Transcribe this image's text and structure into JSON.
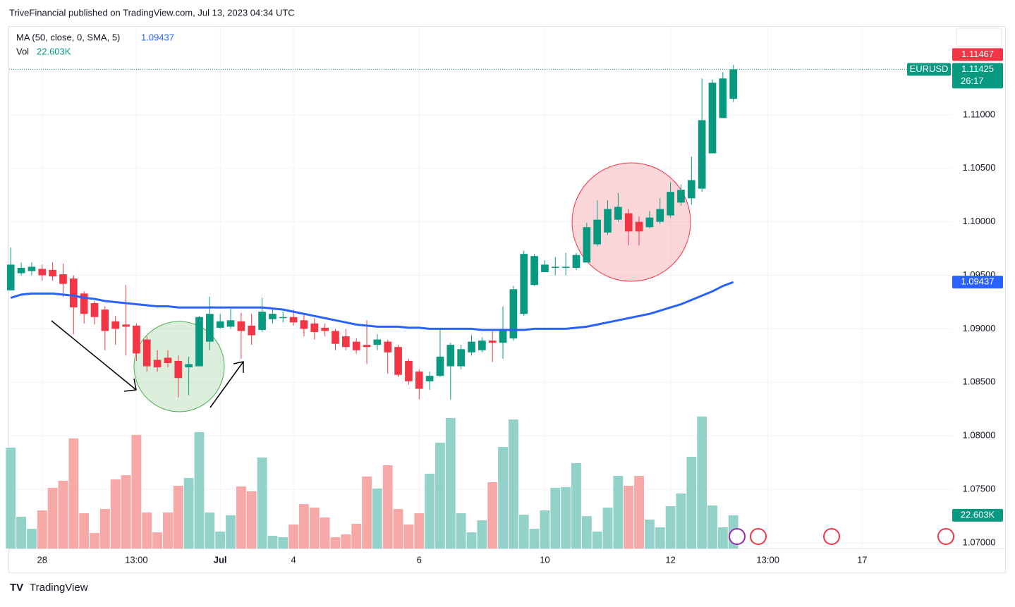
{
  "header": {
    "text": "TriveFinancial published on TradingView.com, Jul 13, 2023 04:34 UTC"
  },
  "chart_data": {
    "type": "candlestick",
    "symbol": "EURUSD",
    "countdown": "26:17",
    "up_color": "#089981",
    "down_color": "#f23645",
    "grid": true,
    "xlim": [
      -0.15,
      89.9
    ],
    "xticks": [
      {
        "value": 3,
        "label": "28"
      },
      {
        "value": 12,
        "label": "13:00"
      },
      {
        "value": 20,
        "label": "Jul"
      },
      {
        "value": 27,
        "label": "4"
      },
      {
        "value": 39,
        "label": "6"
      },
      {
        "value": 51,
        "label": "10"
      },
      {
        "value": 63,
        "label": "12"
      },
      {
        "value": 72.3,
        "label": "13:00"
      },
      {
        "value": 81.3,
        "label": "17"
      }
    ],
    "ylim": [
      1.06947,
      1.11823
    ],
    "yticks": [
      {
        "value": 1.07,
        "label": "1.07000"
      },
      {
        "value": 1.075,
        "label": "1.07500"
      },
      {
        "value": 1.08,
        "label": "1.08000"
      },
      {
        "value": 1.085,
        "label": "1.08500"
      },
      {
        "value": 1.09,
        "label": "1.09000"
      },
      {
        "value": 1.095,
        "label": "1.09500"
      },
      {
        "value": 1.1,
        "label": "1.10000"
      },
      {
        "value": 1.105,
        "label": "1.10500"
      },
      {
        "value": 1.11,
        "label": "1.11000"
      }
    ],
    "open": [
      1.0936,
      1.0952,
      1.0954,
      1.0956,
      1.0955,
      1.0951,
      1.0947,
      1.0933,
      1.0924,
      1.0918,
      1.0907,
      1.0904,
      1.0903,
      1.089,
      1.0871,
      1.0873,
      1.087,
      1.0864,
      1.0865,
      1.0888,
      1.0901,
      1.0902,
      1.0907,
      1.0903,
      1.0899,
      1.0909,
      1.091,
      1.0911,
      1.0908,
      1.0905,
      1.0901,
      1.0898,
      1.0893,
      1.0888,
      1.0885,
      1.0885,
      1.0888,
      1.0883,
      1.087,
      1.086,
      1.0851,
      1.0856,
      1.0865,
      1.0865,
      1.0878,
      1.088,
      1.0889,
      1.0887,
      1.0891,
      1.0914,
      1.0941,
      1.0953,
      1.0957,
      1.0957,
      1.0957,
      1.0962,
      1.0979,
      1.099,
      1.1002,
      1.1008,
      1.1,
      1.0995,
      1.1,
      1.1006,
      1.1018,
      1.1022,
      1.1031,
      1.1064,
      1.1097,
      1.1115
    ],
    "high": [
      1.0976,
      1.0962,
      1.0962,
      1.096,
      1.0962,
      1.0961,
      1.095,
      1.0935,
      1.0926,
      1.0921,
      1.0912,
      1.0941,
      1.0905,
      1.0893,
      1.088,
      1.088,
      1.0875,
      1.0874,
      1.0912,
      1.093,
      1.0914,
      1.0919,
      1.0915,
      1.0914,
      1.0929,
      1.092,
      1.0916,
      1.0918,
      1.0914,
      1.091,
      1.0905,
      1.09,
      1.09,
      1.0891,
      1.0908,
      1.0895,
      1.089,
      1.0885,
      1.0872,
      1.0862,
      1.086,
      1.0901,
      1.0887,
      1.0885,
      1.0894,
      1.0892,
      1.0899,
      1.0921,
      1.094,
      1.0973,
      1.097,
      1.0964,
      1.0967,
      1.0971,
      1.0971,
      1.0999,
      1.102,
      1.102,
      1.1027,
      1.1012,
      1.1005,
      1.101,
      1.1022,
      1.1037,
      1.1035,
      1.1061,
      1.1134,
      1.1133,
      1.114,
      1.11467
    ],
    "low": [
      1.0936,
      1.095,
      1.095,
      1.0945,
      1.0945,
      1.093,
      1.0895,
      1.0905,
      1.0904,
      1.088,
      1.0885,
      1.0875,
      1.087,
      1.086,
      1.086,
      1.0864,
      1.0836,
      1.0838,
      1.0865,
      1.088,
      1.09,
      1.09,
      1.0872,
      1.0885,
      1.0897,
      1.0905,
      1.0906,
      1.0903,
      1.0893,
      1.089,
      1.0893,
      1.088,
      1.088,
      1.0877,
      1.0867,
      1.088,
      1.0858,
      1.0855,
      1.0848,
      1.0834,
      1.0843,
      1.0855,
      1.0834,
      1.0862,
      1.0875,
      1.0878,
      1.0869,
      1.0872,
      1.0889,
      1.0912,
      1.094,
      1.0953,
      1.095,
      1.095,
      1.0955,
      1.0962,
      1.0977,
      1.0988,
      1.1,
      1.0978,
      1.0978,
      1.0994,
      1.0998,
      1.1004,
      1.1015,
      1.1016,
      1.1028,
      1.1064,
      1.1097,
      1.1112
    ],
    "close": [
      1.096,
      1.0957,
      1.0958,
      1.095,
      1.0949,
      1.0942,
      1.092,
      1.0914,
      1.0911,
      1.0898,
      1.09,
      1.0902,
      1.0877,
      1.0865,
      1.0864,
      1.0868,
      1.0854,
      1.0867,
      1.0911,
      1.0914,
      1.0907,
      1.0908,
      1.0898,
      1.0894,
      1.0916,
      1.0914,
      1.0911,
      1.0906,
      1.09,
      1.0897,
      1.0898,
      1.0886,
      1.0883,
      1.088,
      1.0883,
      1.089,
      1.0878,
      1.0857,
      1.0851,
      1.0844,
      1.0856,
      1.0874,
      1.0885,
      1.0881,
      1.0888,
      1.0889,
      1.0887,
      1.0898,
      1.0937,
      1.097,
      1.0968,
      1.096,
      1.0958,
      1.0958,
      1.0969,
      1.0995,
      1.1002,
      1.1012,
      1.1014,
      1.0991,
      1.0991,
      1.1004,
      1.1012,
      1.1028,
      1.103,
      1.1039,
      1.1095,
      1.113,
      1.1134,
      1.11425
    ],
    "ma": {
      "name": "MA (50, close, 0, SMA, 5)",
      "color": "#2962ff",
      "values": [
        1.0929,
        1.0932,
        1.0933,
        1.0933,
        1.0933,
        1.0932,
        1.0931,
        1.0929,
        1.0928,
        1.0926,
        1.0925,
        1.0924,
        1.0923,
        1.0922,
        1.0921,
        1.0921,
        1.092,
        1.092,
        1.092,
        1.092,
        1.092,
        1.092,
        1.092,
        1.092,
        1.092,
        1.0919,
        1.0918,
        1.0916,
        1.0914,
        1.0912,
        1.091,
        1.0908,
        1.0906,
        1.0904,
        1.0903,
        1.0902,
        1.0902,
        1.0902,
        1.0901,
        1.0901,
        1.09,
        1.09,
        1.09,
        1.09,
        1.09,
        1.0899,
        1.0899,
        1.0899,
        1.0899,
        1.0899,
        1.09,
        1.09,
        1.09,
        1.09,
        1.0901,
        1.0902,
        1.0904,
        1.0906,
        1.0908,
        1.091,
        1.0912,
        1.0914,
        1.0917,
        1.092,
        1.0923,
        1.0927,
        1.0931,
        1.0935,
        1.094,
        1.09437
      ]
    },
    "volume": {
      "name": "Vol",
      "up_color": "#92d2c8",
      "down_color": "#f7a9a7",
      "ylim": [
        0,
        355
      ],
      "last_value_label": "22.603K",
      "values": [
        68.6,
        21.6,
        13.4,
        25.9,
        41.3,
        46.1,
        74.9,
        24,
        10.6,
        26.9,
        47,
        49.9,
        77.3,
        24.5,
        11,
        24.5,
        42.7,
        48,
        79.2,
        24.5,
        11.5,
        22.6,
        42.2,
        38.9,
        61.9,
        8.6,
        7.7,
        16.3,
        30.2,
        27.8,
        21.1,
        7.7,
        9.6,
        16.8,
        49,
        40.8,
        56.6,
        26.9,
        16.3,
        24,
        50.9,
        72,
        88.8,
        24,
        11,
        19.2,
        45.1,
        69.1,
        87.8,
        23,
        13.4,
        25.9,
        41.3,
        41.8,
        58.1,
        22.1,
        11.5,
        27.8,
        49.4,
        42.7,
        49.4,
        19.7,
        14.4,
        28.8,
        37.4,
        62.4,
        89.8,
        29.3,
        14.4,
        22.603
      ]
    }
  },
  "footer": {
    "brand": "TradingView"
  }
}
